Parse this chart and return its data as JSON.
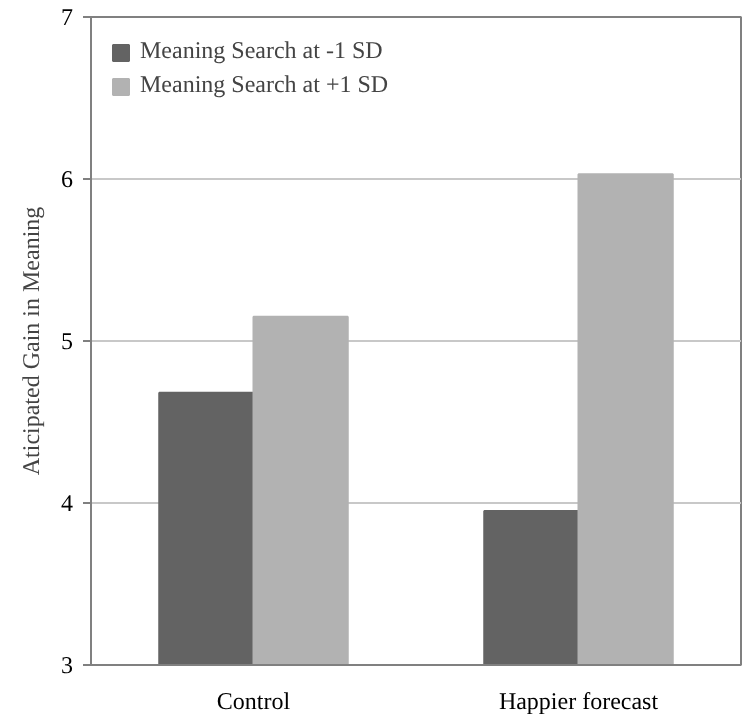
{
  "chart_data": {
    "type": "bar",
    "ylabel": "Aticipated Gain in Meaning",
    "categories": [
      "Control",
      "Happier forecast"
    ],
    "series": [
      {
        "name": "Meaning Search at -1 SD",
        "color": "#636363",
        "values": [
          4.68,
          3.95
        ]
      },
      {
        "name": "Meaning Search at +1 SD",
        "color": "#b2b2b2",
        "values": [
          5.15,
          6.03
        ]
      }
    ],
    "ylim": [
      3,
      7
    ],
    "yticks": [
      3,
      4,
      5,
      6,
      7
    ],
    "grid": "y",
    "legend": "top left"
  }
}
